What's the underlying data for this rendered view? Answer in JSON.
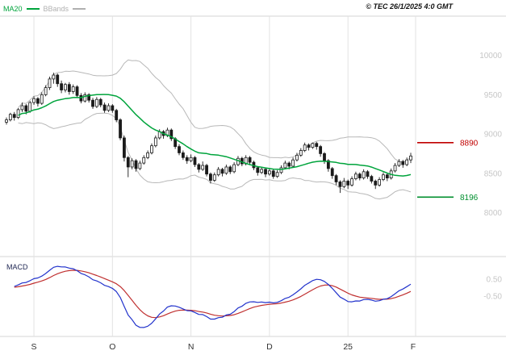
{
  "header": {
    "legend": [
      {
        "label": "MA20",
        "color": "#00a43c"
      },
      {
        "label": "BBands",
        "color": "#b0b0b0"
      }
    ],
    "copyright": "© TEC 26/1/2025 4:0 GMT"
  },
  "colors": {
    "candle": "#1a1a1a",
    "grid": "#e2e2e2",
    "border": "#d4d4d4",
    "tick_text": "#c6c6c6",
    "month_text": "#333333",
    "bollinger": "#b8b8b8",
    "ma20": "#00a43c",
    "resistance": "#c00000",
    "support": "#008f2e",
    "macd_line": "#2233cc",
    "macd_signal": "#c03030",
    "macd_label": "#222a55"
  },
  "chart_data": [
    {
      "type": "candlestick",
      "title": "Daily price with MA20 and Bollinger Bands",
      "ylim": [
        7450,
        10500
      ],
      "y_ticks": [
        10000,
        9500,
        9000,
        8500,
        8000
      ],
      "x_labels": [
        {
          "label": "S",
          "index": 7
        },
        {
          "label": "O",
          "index": 27
        },
        {
          "label": "N",
          "index": 47
        },
        {
          "label": "D",
          "index": 67
        },
        {
          "label": "25",
          "index": 87
        },
        {
          "label": "F",
          "index": -1
        }
      ],
      "levels": [
        {
          "label": "8890",
          "value": 8890,
          "color": "#c00000"
        },
        {
          "label": "8196",
          "value": 8196,
          "color": "#008f2e"
        }
      ],
      "indicators": {
        "ma_period": 20,
        "bb_period": 20,
        "bb_mult": 2
      },
      "candles": [
        [
          9150,
          9210,
          9120,
          9180
        ],
        [
          9180,
          9270,
          9160,
          9250
        ],
        [
          9250,
          9280,
          9170,
          9210
        ],
        [
          9210,
          9330,
          9190,
          9310
        ],
        [
          9310,
          9400,
          9280,
          9360
        ],
        [
          9360,
          9380,
          9250,
          9290
        ],
        [
          9290,
          9420,
          9270,
          9400
        ],
        [
          9400,
          9480,
          9370,
          9450
        ],
        [
          9450,
          9470,
          9350,
          9390
        ],
        [
          9390,
          9530,
          9370,
          9500
        ],
        [
          9500,
          9620,
          9480,
          9590
        ],
        [
          9590,
          9730,
          9560,
          9700
        ],
        [
          9700,
          9780,
          9640,
          9750
        ],
        [
          9750,
          9770,
          9600,
          9640
        ],
        [
          9640,
          9680,
          9520,
          9560
        ],
        [
          9560,
          9650,
          9530,
          9630
        ],
        [
          9630,
          9660,
          9500,
          9540
        ],
        [
          9540,
          9630,
          9510,
          9600
        ],
        [
          9600,
          9620,
          9460,
          9490
        ],
        [
          9490,
          9520,
          9390,
          9420
        ],
        [
          9420,
          9530,
          9400,
          9500
        ],
        [
          9500,
          9520,
          9400,
          9430
        ],
        [
          9430,
          9460,
          9320,
          9350
        ],
        [
          9350,
          9470,
          9330,
          9440
        ],
        [
          9440,
          9460,
          9340,
          9370
        ],
        [
          9370,
          9400,
          9270,
          9300
        ],
        [
          9300,
          9390,
          9280,
          9360
        ],
        [
          9360,
          9380,
          9270,
          9300
        ],
        [
          9300,
          9320,
          9150,
          9180
        ],
        [
          9180,
          9200,
          8920,
          8950
        ],
        [
          8950,
          8980,
          8650,
          8700
        ],
        [
          8700,
          8720,
          8450,
          8580
        ],
        [
          8580,
          8690,
          8550,
          8660
        ],
        [
          8660,
          8680,
          8520,
          8560
        ],
        [
          8560,
          8660,
          8540,
          8630
        ],
        [
          8630,
          8730,
          8610,
          8700
        ],
        [
          8700,
          8790,
          8680,
          8760
        ],
        [
          8760,
          8880,
          8740,
          8850
        ],
        [
          8850,
          8980,
          8830,
          8950
        ],
        [
          8950,
          9060,
          8930,
          9030
        ],
        [
          9030,
          9050,
          8940,
          8980
        ],
        [
          8980,
          9080,
          8960,
          9050
        ],
        [
          9050,
          9070,
          8910,
          8940
        ],
        [
          8940,
          8960,
          8810,
          8840
        ],
        [
          8840,
          8870,
          8730,
          8760
        ],
        [
          8760,
          8790,
          8670,
          8700
        ],
        [
          8700,
          8730,
          8620,
          8660
        ],
        [
          8660,
          8740,
          8640,
          8700
        ],
        [
          8700,
          8720,
          8580,
          8610
        ],
        [
          8610,
          8630,
          8510,
          8550
        ],
        [
          8550,
          8650,
          8530,
          8600
        ],
        [
          8600,
          8620,
          8460,
          8490
        ],
        [
          8490,
          8510,
          8370,
          8410
        ],
        [
          8410,
          8510,
          8390,
          8480
        ],
        [
          8480,
          8580,
          8460,
          8550
        ],
        [
          8550,
          8570,
          8460,
          8500
        ],
        [
          8500,
          8610,
          8480,
          8580
        ],
        [
          8580,
          8600,
          8490,
          8520
        ],
        [
          8520,
          8640,
          8500,
          8610
        ],
        [
          8610,
          8720,
          8590,
          8690
        ],
        [
          8690,
          8710,
          8590,
          8620
        ],
        [
          8620,
          8730,
          8600,
          8700
        ],
        [
          8700,
          8720,
          8610,
          8640
        ],
        [
          8640,
          8660,
          8540,
          8570
        ],
        [
          8570,
          8590,
          8470,
          8510
        ],
        [
          8510,
          8580,
          8490,
          8550
        ],
        [
          8550,
          8570,
          8450,
          8490
        ],
        [
          8490,
          8560,
          8470,
          8530
        ],
        [
          8530,
          8550,
          8430,
          8460
        ],
        [
          8460,
          8540,
          8440,
          8510
        ],
        [
          8510,
          8600,
          8490,
          8570
        ],
        [
          8570,
          8660,
          8550,
          8630
        ],
        [
          8630,
          8650,
          8550,
          8590
        ],
        [
          8590,
          8700,
          8570,
          8670
        ],
        [
          8670,
          8760,
          8650,
          8730
        ],
        [
          8730,
          8820,
          8710,
          8790
        ],
        [
          8790,
          8890,
          8770,
          8860
        ],
        [
          8860,
          8880,
          8790,
          8830
        ],
        [
          8830,
          8890,
          8810,
          8880
        ],
        [
          8880,
          8900,
          8800,
          8840
        ],
        [
          8840,
          8860,
          8710,
          8750
        ],
        [
          8750,
          8770,
          8620,
          8660
        ],
        [
          8660,
          8680,
          8520,
          8560
        ],
        [
          8560,
          8580,
          8430,
          8470
        ],
        [
          8470,
          8490,
          8350,
          8390
        ],
        [
          8390,
          8410,
          8250,
          8330
        ],
        [
          8330,
          8440,
          8310,
          8400
        ],
        [
          8400,
          8420,
          8300,
          8350
        ],
        [
          8350,
          8460,
          8330,
          8430
        ],
        [
          8430,
          8520,
          8410,
          8490
        ],
        [
          8490,
          8510,
          8410,
          8440
        ],
        [
          8440,
          8550,
          8420,
          8520
        ],
        [
          8520,
          8540,
          8430,
          8460
        ],
        [
          8460,
          8480,
          8370,
          8400
        ],
        [
          8400,
          8420,
          8300,
          8350
        ],
        [
          8350,
          8450,
          8330,
          8420
        ],
        [
          8420,
          8510,
          8400,
          8480
        ],
        [
          8480,
          8500,
          8400,
          8440
        ],
        [
          8440,
          8560,
          8420,
          8530
        ],
        [
          8530,
          8630,
          8510,
          8600
        ],
        [
          8600,
          8680,
          8580,
          8650
        ],
        [
          8650,
          8670,
          8570,
          8610
        ],
        [
          8610,
          8700,
          8590,
          8670
        ],
        [
          8670,
          8760,
          8630,
          8720
        ]
      ]
    },
    {
      "type": "line",
      "title": "MACD",
      "label": "MACD",
      "params": {
        "fast": 12,
        "slow": 26,
        "signal": 9
      },
      "y_tick_labels": [
        "0.50",
        "-0.50"
      ],
      "y_tick_values": [
        0.5,
        -0.5
      ]
    }
  ]
}
